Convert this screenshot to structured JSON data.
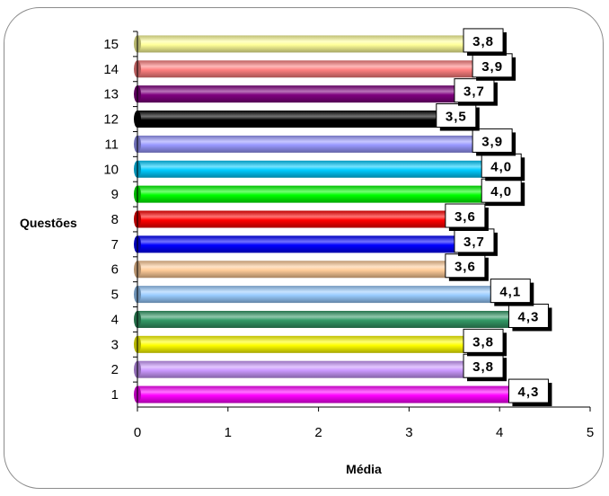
{
  "chart_data": {
    "type": "bar",
    "orientation": "horizontal",
    "title": "",
    "xlabel": "Média",
    "ylabel": "Questões",
    "xlim": [
      0,
      5
    ],
    "xticks": [
      "0",
      "1",
      "2",
      "3",
      "4",
      "5"
    ],
    "grid": false,
    "legend": "none",
    "categories": [
      "1",
      "2",
      "3",
      "4",
      "5",
      "6",
      "7",
      "8",
      "9",
      "10",
      "11",
      "12",
      "13",
      "14",
      "15"
    ],
    "values": [
      4.3,
      3.8,
      3.8,
      4.3,
      4.1,
      3.6,
      3.7,
      3.6,
      4.0,
      4.0,
      3.9,
      3.5,
      3.7,
      3.9,
      3.8
    ],
    "value_labels": [
      "4,3",
      "3,8",
      "3,8",
      "4,3",
      "4,1",
      "3,6",
      "3,7",
      "3,6",
      "4,0",
      "4,0",
      "3,9",
      "3,5",
      "3,7",
      "3,9",
      "3,8"
    ],
    "colors": [
      "#ff00ff",
      "#cc99ff",
      "#ffff00",
      "#339966",
      "#99ccff",
      "#ffcc99",
      "#0000ff",
      "#ff0000",
      "#00ff00",
      "#00ccff",
      "#9999ff",
      "#000000",
      "#800080",
      "#ff8080",
      "#ffff99"
    ]
  }
}
